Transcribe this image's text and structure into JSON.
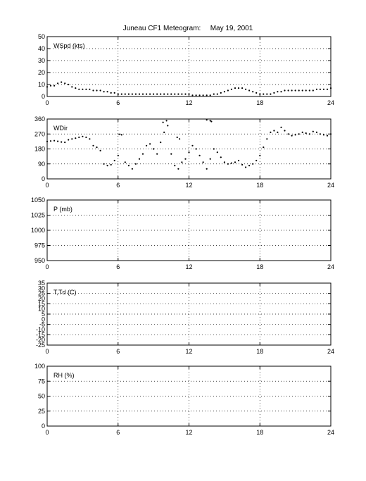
{
  "page": {
    "title": "Juneau CF1 Meteogram:",
    "date": "May 19, 2001"
  },
  "chart_data": [
    {
      "type": "scatter",
      "ylabel": "WSpd (kts)",
      "ylim": [
        0,
        50
      ],
      "yticks": [
        0,
        10,
        20,
        30,
        40,
        50
      ],
      "xlim": [
        0,
        24
      ],
      "xticks": [
        0,
        6,
        12,
        18,
        24
      ],
      "grid": true,
      "series": [
        {
          "values": [
            [
              0,
              8
            ],
            [
              0.3,
              9
            ],
            [
              0.6,
              9
            ],
            [
              0.9,
              11
            ],
            [
              1.2,
              12
            ],
            [
              1.5,
              11
            ],
            [
              1.8,
              10
            ],
            [
              2.1,
              8
            ],
            [
              2.4,
              7
            ],
            [
              2.7,
              6
            ],
            [
              3,
              6
            ],
            [
              3.3,
              6
            ],
            [
              3.6,
              6
            ],
            [
              3.9,
              5
            ],
            [
              4.2,
              5
            ],
            [
              4.5,
              5
            ],
            [
              4.8,
              4
            ],
            [
              5.1,
              4
            ],
            [
              5.4,
              3
            ],
            [
              5.7,
              3
            ],
            [
              6,
              2
            ],
            [
              6.3,
              2
            ],
            [
              6.6,
              2
            ],
            [
              6.9,
              2
            ],
            [
              7.2,
              2
            ],
            [
              7.5,
              2
            ],
            [
              7.8,
              2
            ],
            [
              8.1,
              2
            ],
            [
              8.4,
              2
            ],
            [
              8.7,
              2
            ],
            [
              9,
              2
            ],
            [
              9.3,
              2
            ],
            [
              9.6,
              2
            ],
            [
              9.9,
              2
            ],
            [
              10.2,
              2
            ],
            [
              10.5,
              2
            ],
            [
              10.8,
              2
            ],
            [
              11.1,
              2
            ],
            [
              11.4,
              2
            ],
            [
              11.7,
              2
            ],
            [
              12,
              2
            ],
            [
              12.3,
              1
            ],
            [
              12.6,
              1
            ],
            [
              12.9,
              1
            ],
            [
              13.2,
              1
            ],
            [
              13.5,
              1
            ],
            [
              13.8,
              1
            ],
            [
              14.1,
              2
            ],
            [
              14.4,
              2
            ],
            [
              14.7,
              3
            ],
            [
              15,
              4
            ],
            [
              15.3,
              5
            ],
            [
              15.6,
              6
            ],
            [
              15.9,
              7
            ],
            [
              16.2,
              7
            ],
            [
              16.5,
              7
            ],
            [
              16.8,
              6
            ],
            [
              17.1,
              5
            ],
            [
              17.4,
              4
            ],
            [
              17.7,
              3
            ],
            [
              18,
              2
            ],
            [
              18.3,
              2
            ],
            [
              18.6,
              2
            ],
            [
              18.9,
              2
            ],
            [
              19.2,
              3
            ],
            [
              19.5,
              4
            ],
            [
              19.8,
              4
            ],
            [
              20.1,
              5
            ],
            [
              20.4,
              5
            ],
            [
              20.7,
              5
            ],
            [
              21,
              5
            ],
            [
              21.3,
              5
            ],
            [
              21.6,
              5
            ],
            [
              21.9,
              5
            ],
            [
              22.2,
              5
            ],
            [
              22.5,
              5
            ],
            [
              22.8,
              6
            ],
            [
              23.1,
              6
            ],
            [
              23.4,
              6
            ],
            [
              23.7,
              6
            ],
            [
              24,
              7
            ]
          ]
        }
      ]
    },
    {
      "type": "scatter",
      "ylabel": "WDir",
      "ylim": [
        0,
        360
      ],
      "yticks": [
        0,
        90,
        180,
        270,
        360
      ],
      "xlim": [
        0,
        24
      ],
      "xticks": [
        0,
        6,
        12,
        18,
        24
      ],
      "grid": true,
      "series": [
        {
          "values": [
            [
              0,
              225
            ],
            [
              0.3,
              228
            ],
            [
              0.6,
              230
            ],
            [
              0.9,
              226
            ],
            [
              1.2,
              222
            ],
            [
              1.5,
              220
            ],
            [
              1.8,
              235
            ],
            [
              2.1,
              240
            ],
            [
              2.4,
              245
            ],
            [
              2.7,
              250
            ],
            [
              3,
              255
            ],
            [
              3.3,
              250
            ],
            [
              3.6,
              240
            ],
            [
              3.9,
              200
            ],
            [
              4.2,
              190
            ],
            [
              4.5,
              170
            ],
            [
              4.8,
              90
            ],
            [
              5.1,
              80
            ],
            [
              5.4,
              85
            ],
            [
              5.7,
              110
            ],
            [
              6,
              140
            ],
            [
              6.1,
              268
            ],
            [
              6.3,
              265
            ],
            [
              6.6,
              100
            ],
            [
              6.9,
              80
            ],
            [
              7.2,
              60
            ],
            [
              7.5,
              90
            ],
            [
              7.8,
              120
            ],
            [
              8.1,
              150
            ],
            [
              8.4,
              200
            ],
            [
              8.7,
              210
            ],
            [
              9,
              180
            ],
            [
              9.3,
              150
            ],
            [
              9.6,
              220
            ],
            [
              9.9,
              280
            ],
            [
              10.2,
              320
            ],
            [
              10.5,
              150
            ],
            [
              10.8,
              80
            ],
            [
              11.1,
              60
            ],
            [
              11.4,
              100
            ],
            [
              11.7,
              120
            ],
            [
              12,
              160
            ],
            [
              12.3,
              200
            ],
            [
              12.6,
              180
            ],
            [
              12.9,
              140
            ],
            [
              13.2,
              100
            ],
            [
              13.5,
              60
            ],
            [
              13.8,
              120
            ],
            [
              14.1,
              180
            ],
            [
              14.4,
              160
            ],
            [
              14.7,
              130
            ],
            [
              15,
              100
            ],
            [
              15.3,
              90
            ],
            [
              15.6,
              95
            ],
            [
              15.9,
              100
            ],
            [
              16.2,
              110
            ],
            [
              16.5,
              85
            ],
            [
              16.8,
              70
            ],
            [
              17.1,
              80
            ],
            [
              17.4,
              90
            ],
            [
              17.7,
              110
            ],
            [
              18,
              140
            ],
            [
              18.3,
              190
            ],
            [
              18.6,
              240
            ],
            [
              18.9,
              280
            ],
            [
              19.2,
              290
            ],
            [
              19.5,
              280
            ],
            [
              19.8,
              310
            ],
            [
              20.1,
              290
            ],
            [
              20.4,
              270
            ],
            [
              20.7,
              260
            ],
            [
              21,
              265
            ],
            [
              21.3,
              270
            ],
            [
              21.6,
              280
            ],
            [
              21.9,
              275
            ],
            [
              22.2,
              270
            ],
            [
              22.5,
              285
            ],
            [
              22.8,
              280
            ],
            [
              23.1,
              270
            ],
            [
              23.4,
              265
            ],
            [
              23.7,
              260
            ],
            [
              24,
              270
            ],
            [
              9.8,
              340
            ],
            [
              10.1,
              350
            ],
            [
              13.5,
              355
            ],
            [
              13.8,
              350
            ],
            [
              13.9,
              345
            ],
            [
              11.2,
              240
            ],
            [
              11.0,
              250
            ]
          ]
        }
      ]
    },
    {
      "type": "scatter",
      "ylabel": "P (mb)",
      "ylim": [
        950,
        1050
      ],
      "yticks": [
        950,
        975,
        1000,
        1025,
        1050
      ],
      "xlim": [
        0,
        24
      ],
      "xticks": [
        0,
        6,
        12,
        18,
        24
      ],
      "grid": true,
      "series": []
    },
    {
      "type": "scatter",
      "ylabel": "T,Td (C)",
      "ylim": [
        -25,
        35
      ],
      "yticks": [
        -25,
        -15,
        -5,
        5,
        15,
        25,
        35
      ],
      "extra_tick_labels": [
        -20,
        -10,
        0,
        10,
        20,
        30
      ],
      "xlim": [
        0,
        24
      ],
      "xticks": [
        0,
        6,
        12,
        18,
        24
      ],
      "grid": true,
      "series": []
    },
    {
      "type": "scatter",
      "ylabel": "RH (%)",
      "ylim": [
        0,
        100
      ],
      "yticks": [
        0,
        25,
        50,
        75,
        100
      ],
      "xlim": [
        0,
        24
      ],
      "xticks": [
        0,
        6,
        12,
        18,
        24
      ],
      "grid": true,
      "series": []
    }
  ]
}
